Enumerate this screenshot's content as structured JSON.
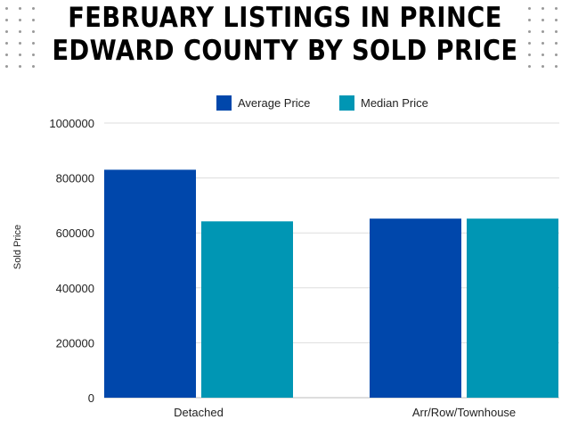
{
  "title": "FEBRUARY LISTINGS IN PRINCE EDWARD COUNTY BY SOLD PRICE",
  "chart_data": {
    "type": "bar",
    "title": "FEBRUARY LISTINGS IN PRINCE EDWARD COUNTY BY SOLD PRICE",
    "xlabel": "",
    "ylabel": "Sold Price",
    "categories": [
      "Detached",
      "Arr/Row/Townhouse"
    ],
    "series": [
      {
        "name": "Average Price",
        "color": "#0047ab",
        "values": [
          830000,
          652000
        ]
      },
      {
        "name": "Median Price",
        "color": "#0096b4",
        "values": [
          642000,
          652000
        ]
      }
    ],
    "ylim": [
      0,
      1000000
    ],
    "yticks": [
      "0",
      "200000",
      "400000",
      "600000",
      "800000",
      "1000000"
    ],
    "grid": true,
    "legend_position": "top"
  },
  "decoration": {
    "dot_color": "#9a9a9a"
  }
}
